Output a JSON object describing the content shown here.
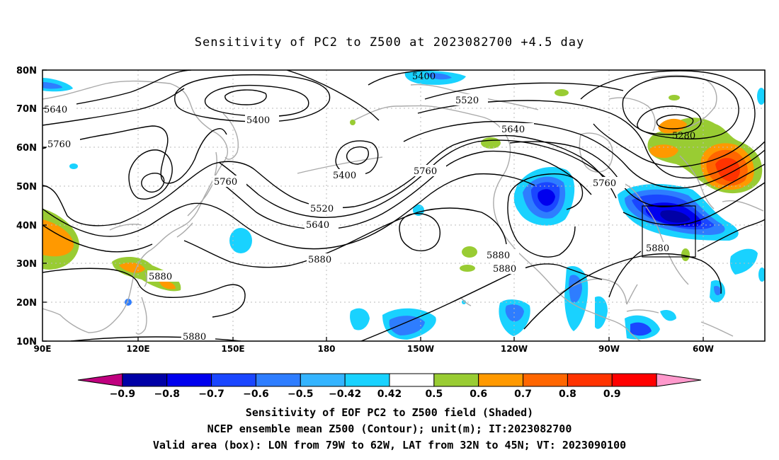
{
  "title": "Sensitivity of PC2 to Z500 at 2023082700 +4.5 day",
  "lat_labels": [
    "80N",
    "70N",
    "60N",
    "50N",
    "40N",
    "30N",
    "20N",
    "10N"
  ],
  "lon_labels": [
    "90E",
    "120E",
    "150E",
    "180",
    "150W",
    "120W",
    "90W",
    "60W"
  ],
  "contour_labels": [
    "5400",
    "5520",
    "5640",
    "5760",
    "5880",
    "5280"
  ],
  "colorbar": {
    "colors": [
      "#c0007f",
      "#0000a6",
      "#0000ee",
      "#1a46ff",
      "#2e7dff",
      "#34b4ff",
      "#19d2ff",
      "#ffffff",
      "#99cc33",
      "#ff9900",
      "#ff6600",
      "#ff3300",
      "#ff0000",
      "#ff99cc"
    ],
    "labels": [
      "-0.9",
      "-0.8",
      "-0.7",
      "-0.6",
      "-0.5",
      "-0.42",
      "0.42",
      "0.5",
      "0.6",
      "0.7",
      "0.8",
      "0.9"
    ]
  },
  "footer": {
    "line1": "Sensitivity of EOF PC2 to Z500 field (Shaded)",
    "line2": "NCEP ensemble mean Z500 (Contour); unit(m); IT:2023082700",
    "line3": "Valid area (box): LON from 79W to 62W, LAT from 32N to 45N; VT: 2023090100"
  }
}
